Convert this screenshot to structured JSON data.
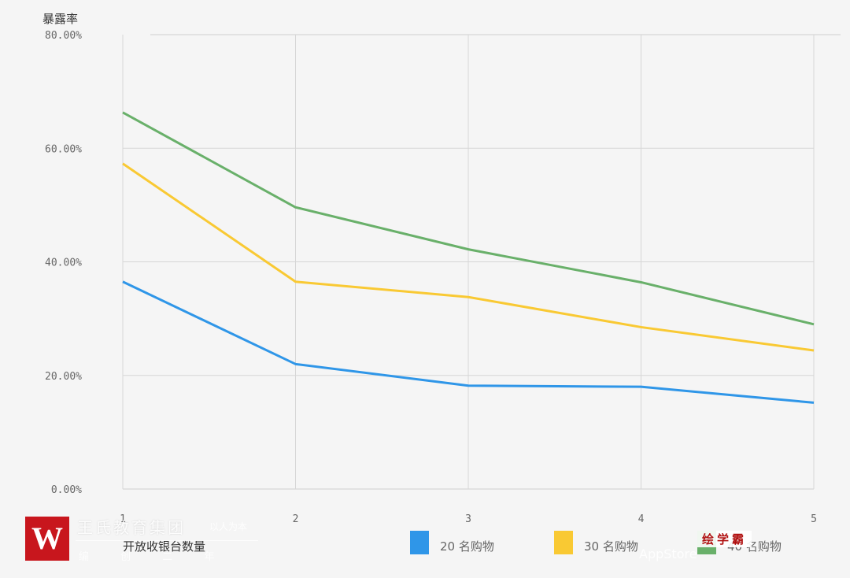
{
  "chart_data": {
    "type": "line",
    "title": "",
    "ylabel": "暴露率",
    "xlabel": "开放收银台数量",
    "x": [
      "1",
      "2",
      "3",
      "4",
      "5"
    ],
    "ylim": [
      0,
      80
    ],
    "yticks": [
      "0.00%",
      "20.00%",
      "40.00%",
      "60.00%",
      "80.00%"
    ],
    "grid": true,
    "legend_position": "bottom",
    "series": [
      {
        "name": "20 名购物",
        "color": "#2f96e8",
        "values": [
          36.5,
          22.0,
          18.2,
          18.0,
          15.2
        ]
      },
      {
        "name": "30 名购物",
        "color": "#f9c933",
        "values": [
          57.3,
          36.5,
          33.8,
          28.5,
          24.4
        ]
      },
      {
        "name": "40 名购物",
        "color": "#69b06a",
        "values": [
          66.3,
          49.6,
          42.2,
          36.4,
          29.0
        ]
      }
    ]
  },
  "watermark": {
    "logo_letter": "W",
    "org_name": "王氏教育集团",
    "org_slogan": "以人为本",
    "bottom_line": "编 创 二 年",
    "badge": "绘学霸",
    "right_line": "AppStore"
  }
}
